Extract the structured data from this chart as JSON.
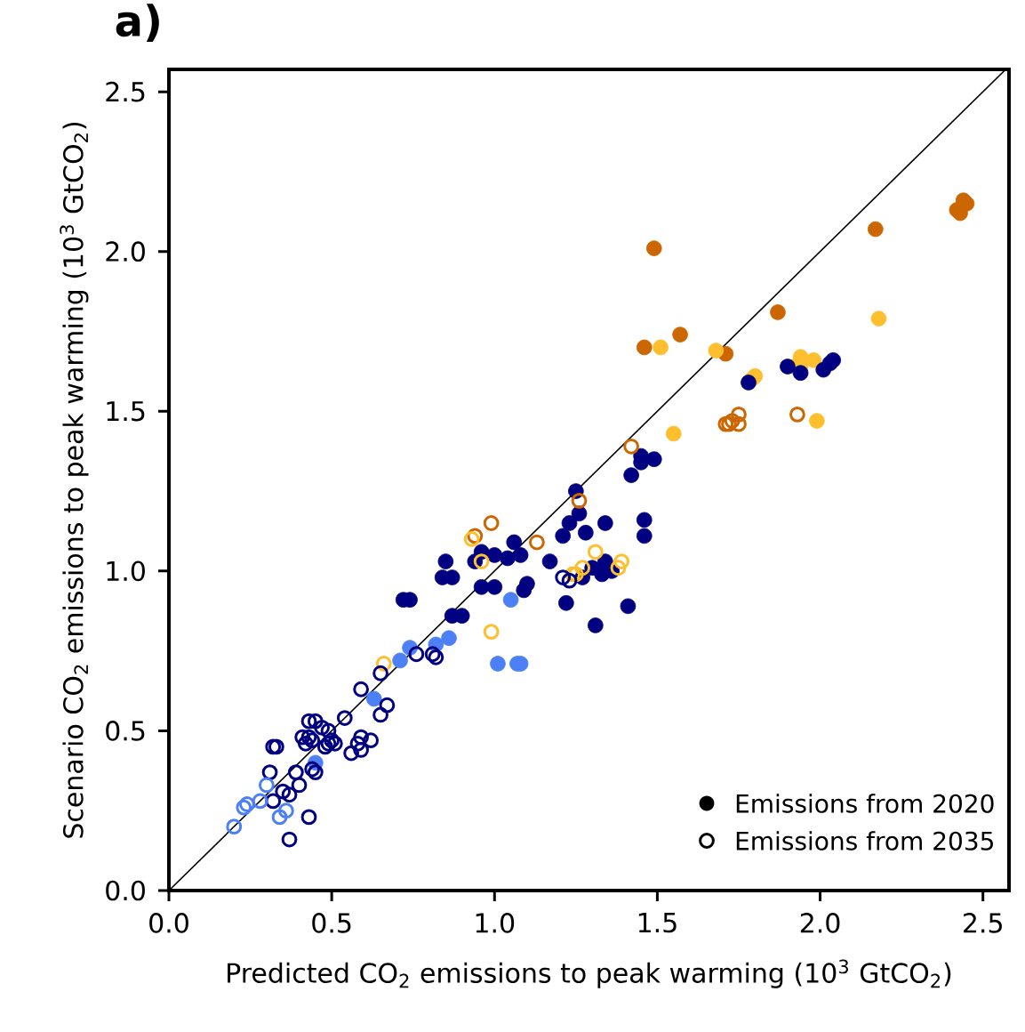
{
  "chart_data": {
    "type": "scatter",
    "title": "a)",
    "xlabel": "Predicted CO$_{2}$ emissions to peak warming (10$^{3}$ GtCO$_{2}$)",
    "ylabel": "Scenario CO$_{2}$ emissions to peak warming (10$^{3}$ GtCO$_{2}$)",
    "xlim": [
      0,
      2.58
    ],
    "ylim": [
      0,
      2.57
    ],
    "xticks": [
      {
        "value": 0,
        "label": "0.0"
      },
      0.5,
      {
        "value": 1,
        "label": "1.0"
      },
      1.5,
      {
        "value": 2,
        "label": "2.0"
      },
      2.5
    ],
    "yticks": [
      {
        "value": 0,
        "label": "0.0"
      },
      0.5,
      {
        "value": 1,
        "label": "1.0"
      },
      1.5,
      {
        "value": 2,
        "label": "2.0"
      },
      2.5
    ],
    "legend": "bottom right",
    "marker": "circle",
    "series": [
      {
        "type": "line",
        "color": "#000000",
        "marker": "none",
        "x": [
          0,
          2.57
        ],
        "values": [
          0,
          2.57
        ]
      },
      {
        "name": "Emissions from 2020",
        "color": "#000000",
        "x": [
          1.49,
          1.46,
          1.57,
          1.71,
          1.87,
          2.17,
          2.42,
          2.44,
          2.45,
          2.43,
          1.51,
          1.68,
          1.55,
          1.8,
          1.79,
          1.94,
          1.98,
          1.92,
          1.94,
          1.99,
          2.18,
          1.9,
          1.94,
          2.01,
          2.03,
          2.04,
          1.78,
          1.45,
          1.45,
          1.49,
          1.42,
          1.25,
          1.26,
          1.23,
          1.21,
          1.28,
          1.34,
          1.46,
          1.46,
          1.17,
          1.22,
          1.41,
          1.31,
          1.3,
          1.33,
          1.36,
          1.27,
          1.34,
          1.06,
          1.08,
          1.04,
          1.0,
          0.96,
          0.94,
          0.85,
          0.84,
          0.87,
          0.72,
          0.74,
          0.96,
          1.0,
          1.09,
          1.1,
          0.87,
          0.9,
          1.05,
          1.01,
          1.07,
          1.08,
          0.86,
          0.82,
          0.74,
          0.71,
          0.63,
          0.45
        ],
        "values": [
          2.01,
          1.7,
          1.74,
          1.68,
          1.81,
          2.07,
          2.13,
          2.16,
          2.15,
          2.12,
          1.7,
          1.69,
          1.43,
          1.61,
          1.6,
          1.67,
          1.66,
          1.64,
          1.64,
          1.47,
          1.79,
          1.64,
          1.62,
          1.63,
          1.65,
          1.66,
          1.59,
          1.36,
          1.34,
          1.35,
          1.3,
          1.25,
          1.18,
          1.15,
          1.11,
          1.12,
          1.15,
          1.16,
          1.11,
          1.03,
          0.9,
          0.89,
          0.83,
          1.01,
          0.99,
          1.0,
          0.98,
          1.03,
          1.09,
          1.05,
          1.04,
          1.05,
          1.06,
          1.03,
          1.03,
          0.98,
          0.98,
          0.91,
          0.91,
          0.95,
          0.95,
          0.94,
          0.96,
          0.86,
          0.86,
          0.91,
          0.71,
          0.71,
          0.71,
          0.79,
          0.77,
          0.76,
          0.72,
          0.6,
          0.4
        ],
        "colors": [
          "#cc6600",
          "#cc6600",
          "#cc6600",
          "#cc6600",
          "#cc6600",
          "#cc6600",
          "#cc6600",
          "#cc6600",
          "#cc6600",
          "#cc6600",
          "#fdbf2d",
          "#fdbf2d",
          "#fdbf2d",
          "#fdbf2d",
          "#fdbf2d",
          "#fdbf2d",
          "#fdbf2d",
          "#fdbf2d",
          "#fdbf2d",
          "#fdbf2d",
          "#fdbf2d",
          "#000080",
          "#000080",
          "#000080",
          "#000080",
          "#000080",
          "#000080",
          "#000080",
          "#000080",
          "#000080",
          "#000080",
          "#000080",
          "#000080",
          "#000080",
          "#000080",
          "#000080",
          "#000080",
          "#000080",
          "#000080",
          "#000080",
          "#000080",
          "#000080",
          "#000080",
          "#000080",
          "#000080",
          "#000080",
          "#000080",
          "#000080",
          "#000080",
          "#000080",
          "#000080",
          "#000080",
          "#000080",
          "#000080",
          "#000080",
          "#000080",
          "#000080",
          "#000080",
          "#000080",
          "#000080",
          "#000080",
          "#000080",
          "#000080",
          "#000080",
          "#000080",
          "#4d80f5",
          "#4d80f5",
          "#4d80f5",
          "#4d80f5",
          "#4d80f5",
          "#4d80f5",
          "#4d80f5",
          "#4d80f5",
          "#4d80f5",
          "#4d80f5"
        ]
      },
      {
        "name": "Emissions from 2035",
        "color": "#000000",
        "x": [
          1.42,
          1.26,
          1.13,
          0.94,
          0.99,
          1.71,
          1.73,
          1.75,
          1.75,
          1.72,
          1.93,
          0.93,
          0.96,
          0.99,
          0.66,
          1.31,
          1.27,
          1.25,
          1.24,
          1.38,
          1.39,
          1.21,
          1.23,
          0.76,
          0.81,
          0.82,
          0.65,
          0.59,
          0.67,
          0.65,
          0.54,
          0.43,
          0.45,
          0.41,
          0.47,
          0.49,
          0.43,
          0.42,
          0.44,
          0.49,
          0.5,
          0.51,
          0.48,
          0.59,
          0.62,
          0.58,
          0.59,
          0.56,
          0.32,
          0.33,
          0.31,
          0.39,
          0.4,
          0.35,
          0.37,
          0.32,
          0.44,
          0.45,
          0.43,
          0.37,
          0.3,
          0.24,
          0.23,
          0.28,
          0.34,
          0.36,
          0.2
        ],
        "values": [
          1.39,
          1.22,
          1.09,
          1.11,
          1.15,
          1.46,
          1.47,
          1.49,
          1.46,
          1.46,
          1.49,
          1.1,
          1.03,
          0.81,
          0.71,
          1.06,
          1.01,
          0.99,
          0.99,
          1.01,
          1.03,
          0.98,
          0.97,
          0.74,
          0.74,
          0.73,
          0.68,
          0.63,
          0.58,
          0.55,
          0.54,
          0.53,
          0.53,
          0.48,
          0.51,
          0.5,
          0.48,
          0.46,
          0.47,
          0.46,
          0.47,
          0.46,
          0.45,
          0.48,
          0.47,
          0.46,
          0.44,
          0.43,
          0.45,
          0.45,
          0.37,
          0.37,
          0.33,
          0.31,
          0.3,
          0.28,
          0.38,
          0.37,
          0.23,
          0.16,
          0.33,
          0.27,
          0.26,
          0.28,
          0.23,
          0.25,
          0.2
        ],
        "colors": [
          "#cc6600",
          "#cc6600",
          "#cc6600",
          "#cc6600",
          "#cc6600",
          "#cc6600",
          "#cc6600",
          "#cc6600",
          "#cc6600",
          "#cc6600",
          "#cc6600",
          "#fdbf2d",
          "#fdbf2d",
          "#fdbf2d",
          "#fdbf2d",
          "#fdbf2d",
          "#fdbf2d",
          "#fdbf2d",
          "#fdbf2d",
          "#fdbf2d",
          "#fdbf2d",
          "#000080",
          "#000080",
          "#000080",
          "#000080",
          "#000080",
          "#000080",
          "#000080",
          "#000080",
          "#000080",
          "#000080",
          "#000080",
          "#000080",
          "#000080",
          "#000080",
          "#000080",
          "#000080",
          "#000080",
          "#000080",
          "#000080",
          "#000080",
          "#000080",
          "#000080",
          "#000080",
          "#000080",
          "#000080",
          "#000080",
          "#000080",
          "#000080",
          "#000080",
          "#000080",
          "#000080",
          "#000080",
          "#000080",
          "#000080",
          "#000080",
          "#000080",
          "#000080",
          "#000080",
          "#000080",
          "#4d80f5",
          "#4d80f5",
          "#4d80f5",
          "#4d80f5",
          "#4d80f5",
          "#4d80f5",
          "#4d80f5"
        ]
      }
    ]
  }
}
